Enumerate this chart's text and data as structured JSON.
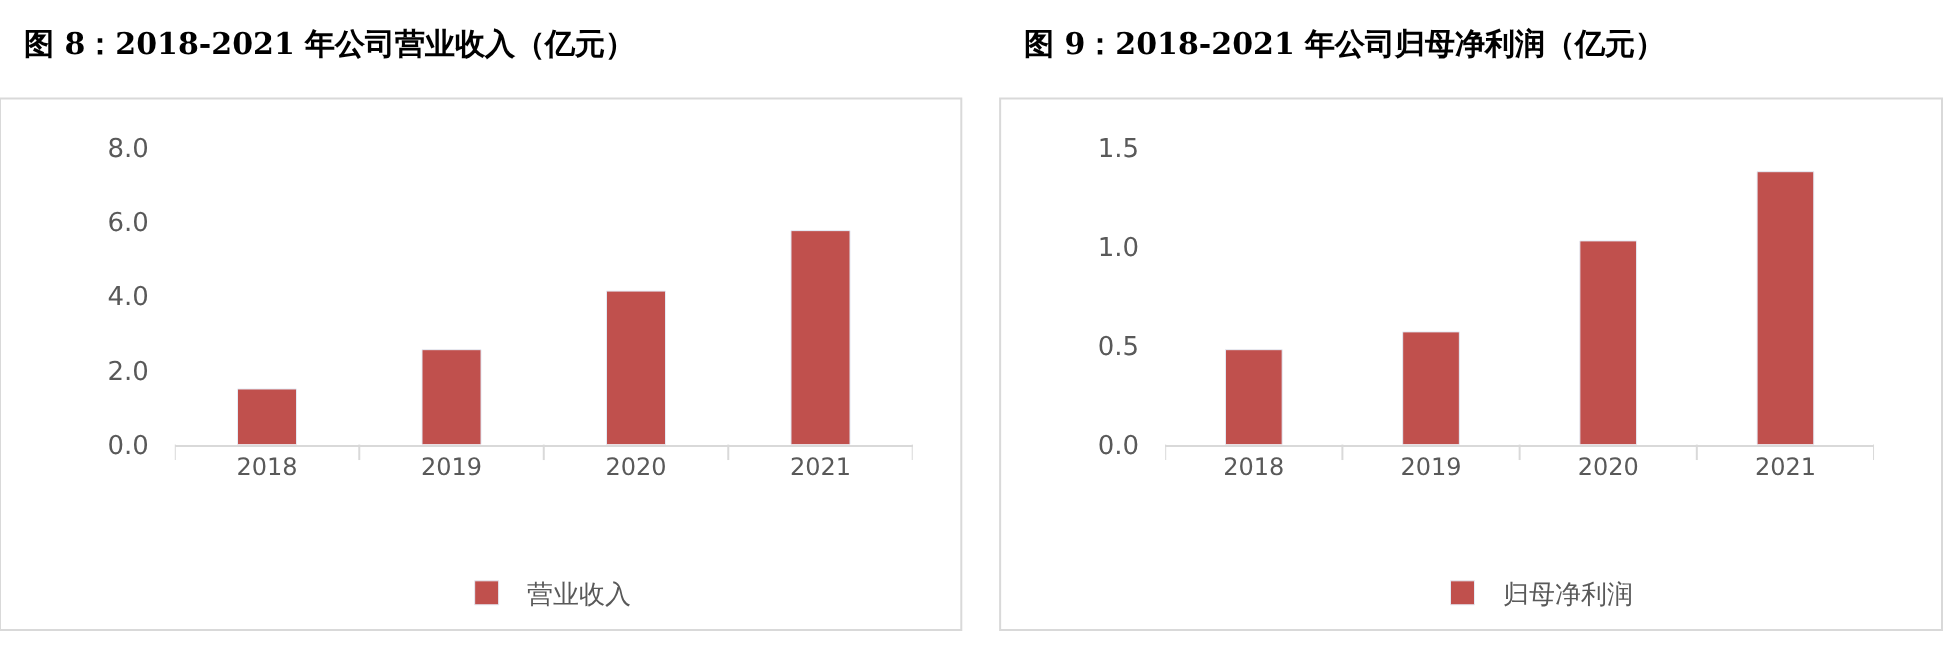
{
  "chart_data": [
    {
      "type": "bar",
      "title": "图 8：2018-2021 年公司营业收入（亿元）",
      "categories": [
        "2018",
        "2019",
        "2020",
        "2021"
      ],
      "series": [
        {
          "name": "营业收入",
          "color": "#c0504d",
          "values": [
            1.5,
            2.56,
            4.14,
            5.77
          ]
        }
      ],
      "ylim": [
        0,
        8
      ],
      "yticks": [
        {
          "value": 0,
          "label": "0.0"
        },
        {
          "value": 2,
          "label": "2.0"
        },
        {
          "value": 4,
          "label": "4.0"
        },
        {
          "value": 6,
          "label": "6.0"
        },
        {
          "value": 8,
          "label": "8.0"
        }
      ],
      "legend": "bottom"
    },
    {
      "type": "bar",
      "title": "图 9：2018-2021 年公司归母净利润（亿元）",
      "categories": [
        "2018",
        "2019",
        "2020",
        "2021"
      ],
      "series": [
        {
          "name": "归母净利润",
          "color": "#c0504d",
          "values": [
            0.48,
            0.57,
            1.03,
            1.38
          ]
        }
      ],
      "ylim": [
        0,
        1.5
      ],
      "yticks": [
        {
          "value": 0,
          "label": "0.0"
        },
        {
          "value": 0.5,
          "label": "0.5"
        },
        {
          "value": 1.0,
          "label": "1.0"
        },
        {
          "value": 1.5,
          "label": "1.5"
        }
      ],
      "legend": "bottom"
    }
  ]
}
